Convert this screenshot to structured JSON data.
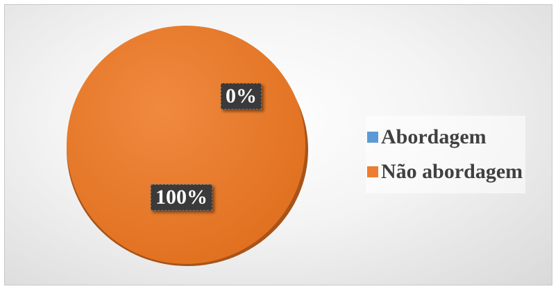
{
  "chart_data": {
    "type": "pie",
    "categories": [
      "Abordagem",
      "Não abordagem"
    ],
    "values": [
      0,
      100
    ],
    "data_labels": [
      "0%",
      "100%"
    ],
    "colors": [
      "#5b9bd5",
      "#ed7d31"
    ],
    "legend_position": "right"
  }
}
